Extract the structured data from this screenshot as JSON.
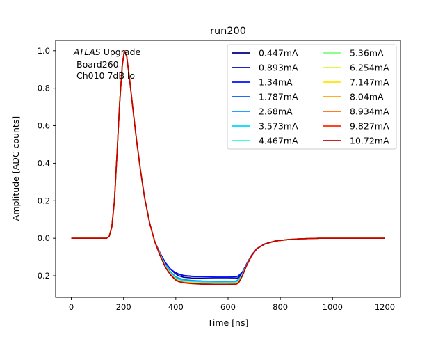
{
  "chart_data": {
    "type": "line",
    "title": "run200",
    "xlabel": "Time [ns]",
    "ylabel": "Amplitude [ADC counts]",
    "xlim": [
      -60,
      1260
    ],
    "ylim": [
      -0.315,
      1.055
    ],
    "xticks": [
      0,
      200,
      400,
      600,
      800,
      1000,
      1200
    ],
    "yticks": [
      -0.2,
      0.0,
      0.2,
      0.4,
      0.6,
      0.8,
      1.0
    ],
    "xtick_labels": [
      "0",
      "200",
      "400",
      "600",
      "800",
      "1000",
      "1200"
    ],
    "ytick_labels": [
      "−0.2",
      "0.0",
      "0.2",
      "0.4",
      "0.6",
      "0.8",
      "1.0"
    ],
    "grid": false,
    "legend_position": "top-right",
    "legend_columns": 2,
    "annotation": {
      "line1_italic": "ATLAS",
      "line1_rest": " Upgrade",
      "line2": "Board260",
      "line3": "Ch010 7dB lo"
    },
    "common_pulse": {
      "x": [
        0,
        135,
        145,
        155,
        165,
        175,
        185,
        195,
        203,
        212,
        222,
        235,
        250,
        265,
        280,
        300,
        320
      ],
      "y": [
        0.0,
        0.0,
        0.01,
        0.06,
        0.2,
        0.45,
        0.72,
        0.92,
        1.0,
        0.97,
        0.86,
        0.7,
        0.52,
        0.36,
        0.22,
        0.08,
        -0.02
      ]
    },
    "series": [
      {
        "name": "0.447mA",
        "color": "#00007f",
        "x": [
          320,
          340,
          360,
          380,
          395,
          400,
          410,
          430,
          460,
          500,
          550,
          600,
          630,
          640,
          655,
          670,
          690,
          710,
          740,
          780,
          830,
          880,
          950,
          1050,
          1200
        ],
        "y": [
          -0.02,
          -0.08,
          -0.13,
          -0.165,
          -0.185,
          -0.19,
          -0.2,
          -0.208,
          -0.212,
          -0.214,
          -0.215,
          -0.215,
          -0.214,
          -0.21,
          -0.185,
          -0.14,
          -0.09,
          -0.055,
          -0.03,
          -0.015,
          -0.007,
          -0.003,
          0.0,
          0.0,
          0.0
        ]
      },
      {
        "name": "0.893mA",
        "color": "#0000c4",
        "x": [
          320,
          340,
          360,
          380,
          395,
          400,
          410,
          430,
          460,
          500,
          550,
          600,
          630,
          640,
          655,
          670,
          690,
          710,
          740,
          780,
          830,
          880,
          950,
          1050,
          1200
        ],
        "y": [
          -0.02,
          -0.08,
          -0.13,
          -0.165,
          -0.18,
          -0.183,
          -0.19,
          -0.198,
          -0.202,
          -0.205,
          -0.207,
          -0.207,
          -0.206,
          -0.2,
          -0.18,
          -0.14,
          -0.09,
          -0.055,
          -0.03,
          -0.015,
          -0.007,
          -0.003,
          0.0,
          0.0,
          0.0
        ]
      },
      {
        "name": "1.34mA",
        "color": "#0010ff",
        "x": [
          320,
          340,
          360,
          380,
          395,
          400,
          410,
          430,
          460,
          500,
          550,
          600,
          630,
          640,
          655,
          670,
          690,
          710,
          740,
          780,
          830,
          880,
          950,
          1050,
          1200
        ],
        "y": [
          -0.02,
          -0.08,
          -0.13,
          -0.165,
          -0.18,
          -0.185,
          -0.192,
          -0.2,
          -0.204,
          -0.206,
          -0.208,
          -0.208,
          -0.207,
          -0.2,
          -0.18,
          -0.14,
          -0.09,
          -0.055,
          -0.03,
          -0.015,
          -0.007,
          -0.003,
          0.0,
          0.0,
          0.0
        ]
      },
      {
        "name": "1.787mA",
        "color": "#0054ff",
        "x": [
          320,
          340,
          360,
          380,
          395,
          400,
          410,
          430,
          460,
          500,
          550,
          600,
          630,
          640,
          655,
          670,
          690,
          710,
          740,
          780,
          830,
          880,
          950,
          1050,
          1200
        ],
        "y": [
          -0.02,
          -0.085,
          -0.14,
          -0.18,
          -0.2,
          -0.205,
          -0.212,
          -0.22,
          -0.225,
          -0.228,
          -0.23,
          -0.23,
          -0.229,
          -0.22,
          -0.19,
          -0.145,
          -0.092,
          -0.056,
          -0.031,
          -0.015,
          -0.007,
          -0.003,
          0.0,
          0.0,
          0.0
        ]
      },
      {
        "name": "2.68mA",
        "color": "#0098ff",
        "x": [
          320,
          340,
          360,
          380,
          395,
          400,
          410,
          430,
          460,
          500,
          550,
          600,
          630,
          640,
          655,
          670,
          690,
          710,
          740,
          780,
          830,
          880,
          950,
          1050,
          1200
        ],
        "y": [
          -0.02,
          -0.085,
          -0.14,
          -0.18,
          -0.2,
          -0.205,
          -0.213,
          -0.221,
          -0.226,
          -0.229,
          -0.231,
          -0.231,
          -0.23,
          -0.222,
          -0.19,
          -0.145,
          -0.092,
          -0.056,
          -0.031,
          -0.015,
          -0.007,
          -0.003,
          0.0,
          0.0,
          0.0
        ]
      },
      {
        "name": "3.573mA",
        "color": "#00d8ff",
        "x": [
          320,
          340,
          360,
          380,
          395,
          400,
          410,
          430,
          460,
          500,
          550,
          600,
          630,
          640,
          655,
          670,
          690,
          710,
          740,
          780,
          830,
          880,
          950,
          1050,
          1200
        ],
        "y": [
          -0.02,
          -0.087,
          -0.145,
          -0.185,
          -0.205,
          -0.21,
          -0.218,
          -0.226,
          -0.23,
          -0.233,
          -0.235,
          -0.235,
          -0.234,
          -0.226,
          -0.192,
          -0.146,
          -0.093,
          -0.056,
          -0.031,
          -0.015,
          -0.007,
          -0.003,
          0.0,
          0.0,
          0.0
        ]
      },
      {
        "name": "4.467mA",
        "color": "#29ffce",
        "x": [
          320,
          340,
          360,
          380,
          395,
          400,
          410,
          430,
          460,
          500,
          550,
          600,
          630,
          640,
          655,
          670,
          690,
          710,
          740,
          780,
          830,
          880,
          950,
          1050,
          1200
        ],
        "y": [
          -0.02,
          -0.09,
          -0.15,
          -0.19,
          -0.21,
          -0.215,
          -0.223,
          -0.23,
          -0.234,
          -0.237,
          -0.238,
          -0.238,
          -0.237,
          -0.23,
          -0.195,
          -0.147,
          -0.093,
          -0.056,
          -0.031,
          -0.015,
          -0.007,
          -0.003,
          0.0,
          0.0,
          0.0
        ]
      },
      {
        "name": "5.36mA",
        "color": "#7dff7a",
        "x": [
          320,
          340,
          360,
          380,
          395,
          400,
          410,
          430,
          460,
          500,
          550,
          600,
          630,
          640,
          655,
          670,
          690,
          710,
          740,
          780,
          830,
          880,
          950,
          1050,
          1200
        ],
        "y": [
          -0.02,
          -0.09,
          -0.15,
          -0.19,
          -0.21,
          -0.216,
          -0.224,
          -0.231,
          -0.235,
          -0.238,
          -0.24,
          -0.24,
          -0.239,
          -0.232,
          -0.196,
          -0.147,
          -0.093,
          -0.056,
          -0.031,
          -0.015,
          -0.007,
          -0.003,
          0.0,
          0.0,
          0.0
        ]
      },
      {
        "name": "6.254mA",
        "color": "#ceff29",
        "x": [
          320,
          340,
          360,
          380,
          395,
          400,
          410,
          430,
          460,
          500,
          550,
          600,
          630,
          640,
          655,
          670,
          690,
          710,
          740,
          780,
          830,
          880,
          950,
          1050,
          1200
        ],
        "y": [
          -0.02,
          -0.09,
          -0.15,
          -0.19,
          -0.212,
          -0.218,
          -0.226,
          -0.233,
          -0.237,
          -0.24,
          -0.242,
          -0.242,
          -0.241,
          -0.234,
          -0.197,
          -0.148,
          -0.093,
          -0.056,
          -0.031,
          -0.015,
          -0.007,
          -0.003,
          0.0,
          0.0,
          0.0
        ]
      },
      {
        "name": "7.147mA",
        "color": "#ffe600",
        "x": [
          320,
          340,
          360,
          380,
          395,
          400,
          410,
          430,
          460,
          500,
          550,
          600,
          630,
          640,
          655,
          670,
          690,
          710,
          740,
          780,
          830,
          880,
          950,
          1050,
          1200
        ],
        "y": [
          -0.02,
          -0.09,
          -0.152,
          -0.192,
          -0.213,
          -0.219,
          -0.227,
          -0.234,
          -0.238,
          -0.241,
          -0.243,
          -0.243,
          -0.242,
          -0.235,
          -0.198,
          -0.148,
          -0.093,
          -0.056,
          -0.031,
          -0.015,
          -0.007,
          -0.003,
          0.0,
          0.0,
          0.0
        ]
      },
      {
        "name": "8.04mA",
        "color": "#ffa400",
        "x": [
          320,
          340,
          360,
          380,
          395,
          400,
          410,
          430,
          460,
          500,
          550,
          600,
          630,
          640,
          655,
          670,
          690,
          710,
          740,
          780,
          830,
          880,
          950,
          1050,
          1200
        ],
        "y": [
          -0.02,
          -0.092,
          -0.153,
          -0.193,
          -0.214,
          -0.22,
          -0.228,
          -0.235,
          -0.239,
          -0.242,
          -0.244,
          -0.244,
          -0.243,
          -0.236,
          -0.198,
          -0.148,
          -0.093,
          -0.056,
          -0.031,
          -0.015,
          -0.007,
          -0.003,
          0.0,
          0.0,
          0.0
        ]
      },
      {
        "name": "8.934mA",
        "color": "#ff6800",
        "x": [
          320,
          340,
          360,
          380,
          395,
          400,
          410,
          430,
          460,
          500,
          550,
          600,
          630,
          640,
          655,
          670,
          690,
          710,
          740,
          780,
          830,
          880,
          950,
          1050,
          1200
        ],
        "y": [
          -0.02,
          -0.092,
          -0.153,
          -0.194,
          -0.215,
          -0.221,
          -0.229,
          -0.236,
          -0.24,
          -0.243,
          -0.245,
          -0.245,
          -0.244,
          -0.237,
          -0.199,
          -0.148,
          -0.093,
          -0.056,
          -0.031,
          -0.015,
          -0.007,
          -0.003,
          0.0,
          0.0,
          0.0
        ]
      },
      {
        "name": "9.827mA",
        "color": "#ff2900",
        "x": [
          320,
          340,
          360,
          380,
          395,
          400,
          410,
          430,
          460,
          500,
          550,
          600,
          630,
          640,
          655,
          670,
          690,
          710,
          740,
          780,
          830,
          880,
          950,
          1050,
          1200
        ],
        "y": [
          -0.02,
          -0.093,
          -0.154,
          -0.195,
          -0.216,
          -0.222,
          -0.23,
          -0.237,
          -0.241,
          -0.244,
          -0.246,
          -0.246,
          -0.245,
          -0.238,
          -0.2,
          -0.149,
          -0.093,
          -0.056,
          -0.031,
          -0.015,
          -0.007,
          -0.003,
          0.0,
          0.0,
          0.0
        ]
      },
      {
        "name": "10.72mA",
        "color": "#c40000",
        "x": [
          320,
          340,
          360,
          380,
          395,
          400,
          410,
          430,
          460,
          500,
          550,
          600,
          630,
          640,
          655,
          670,
          690,
          710,
          740,
          780,
          830,
          880,
          950,
          1050,
          1200
        ],
        "y": [
          -0.02,
          -0.093,
          -0.155,
          -0.196,
          -0.217,
          -0.223,
          -0.231,
          -0.238,
          -0.242,
          -0.245,
          -0.247,
          -0.247,
          -0.246,
          -0.239,
          -0.2,
          -0.149,
          -0.093,
          -0.056,
          -0.031,
          -0.015,
          -0.007,
          -0.003,
          0.0,
          0.0,
          0.0
        ]
      }
    ]
  }
}
